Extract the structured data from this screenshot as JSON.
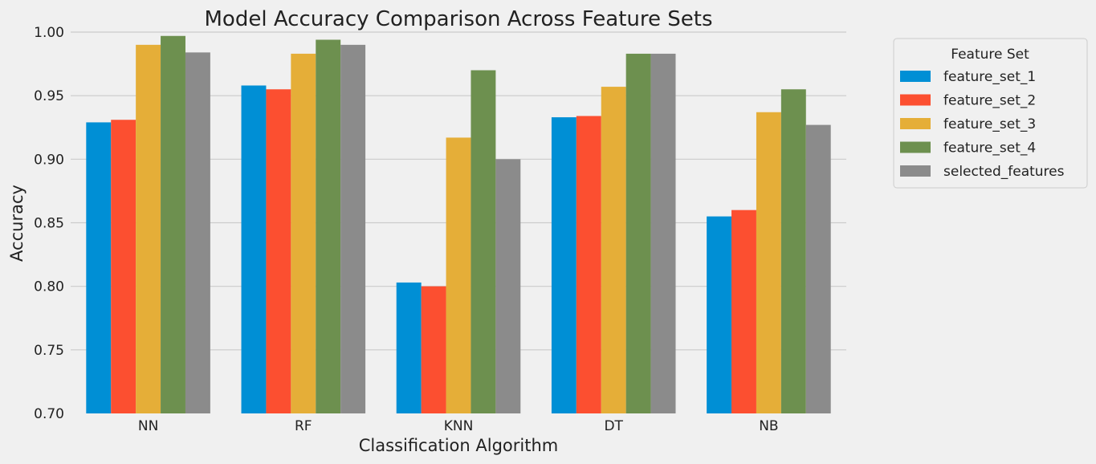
{
  "chart_data": {
    "type": "bar",
    "title": "Model Accuracy Comparison Across Feature Sets",
    "xlabel": "Classification Algorithm",
    "ylabel": "Accuracy",
    "ylim": [
      0.7,
      1.0
    ],
    "yticks": [
      "0.70",
      "0.75",
      "0.80",
      "0.85",
      "0.90",
      "0.95",
      "1.00"
    ],
    "grid": true,
    "legend": {
      "title": "Feature Set",
      "placement": "outside-right"
    },
    "categories": [
      "NN",
      "RF",
      "KNN",
      "DT",
      "NB"
    ],
    "series": [
      {
        "name": "feature_set_1",
        "color": "#008fd5",
        "values": [
          0.929,
          0.958,
          0.803,
          0.933,
          0.855
        ]
      },
      {
        "name": "feature_set_2",
        "color": "#fc4f30",
        "values": [
          0.931,
          0.955,
          0.8,
          0.934,
          0.86
        ]
      },
      {
        "name": "feature_set_3",
        "color": "#e5ae38",
        "values": [
          0.99,
          0.983,
          0.917,
          0.957,
          0.937
        ]
      },
      {
        "name": "feature_set_4",
        "color": "#6d904f",
        "values": [
          0.997,
          0.994,
          0.97,
          0.983,
          0.955
        ]
      },
      {
        "name": "selected_features",
        "color": "#8b8b8b",
        "values": [
          0.984,
          0.99,
          0.9,
          0.983,
          0.927
        ]
      }
    ]
  }
}
